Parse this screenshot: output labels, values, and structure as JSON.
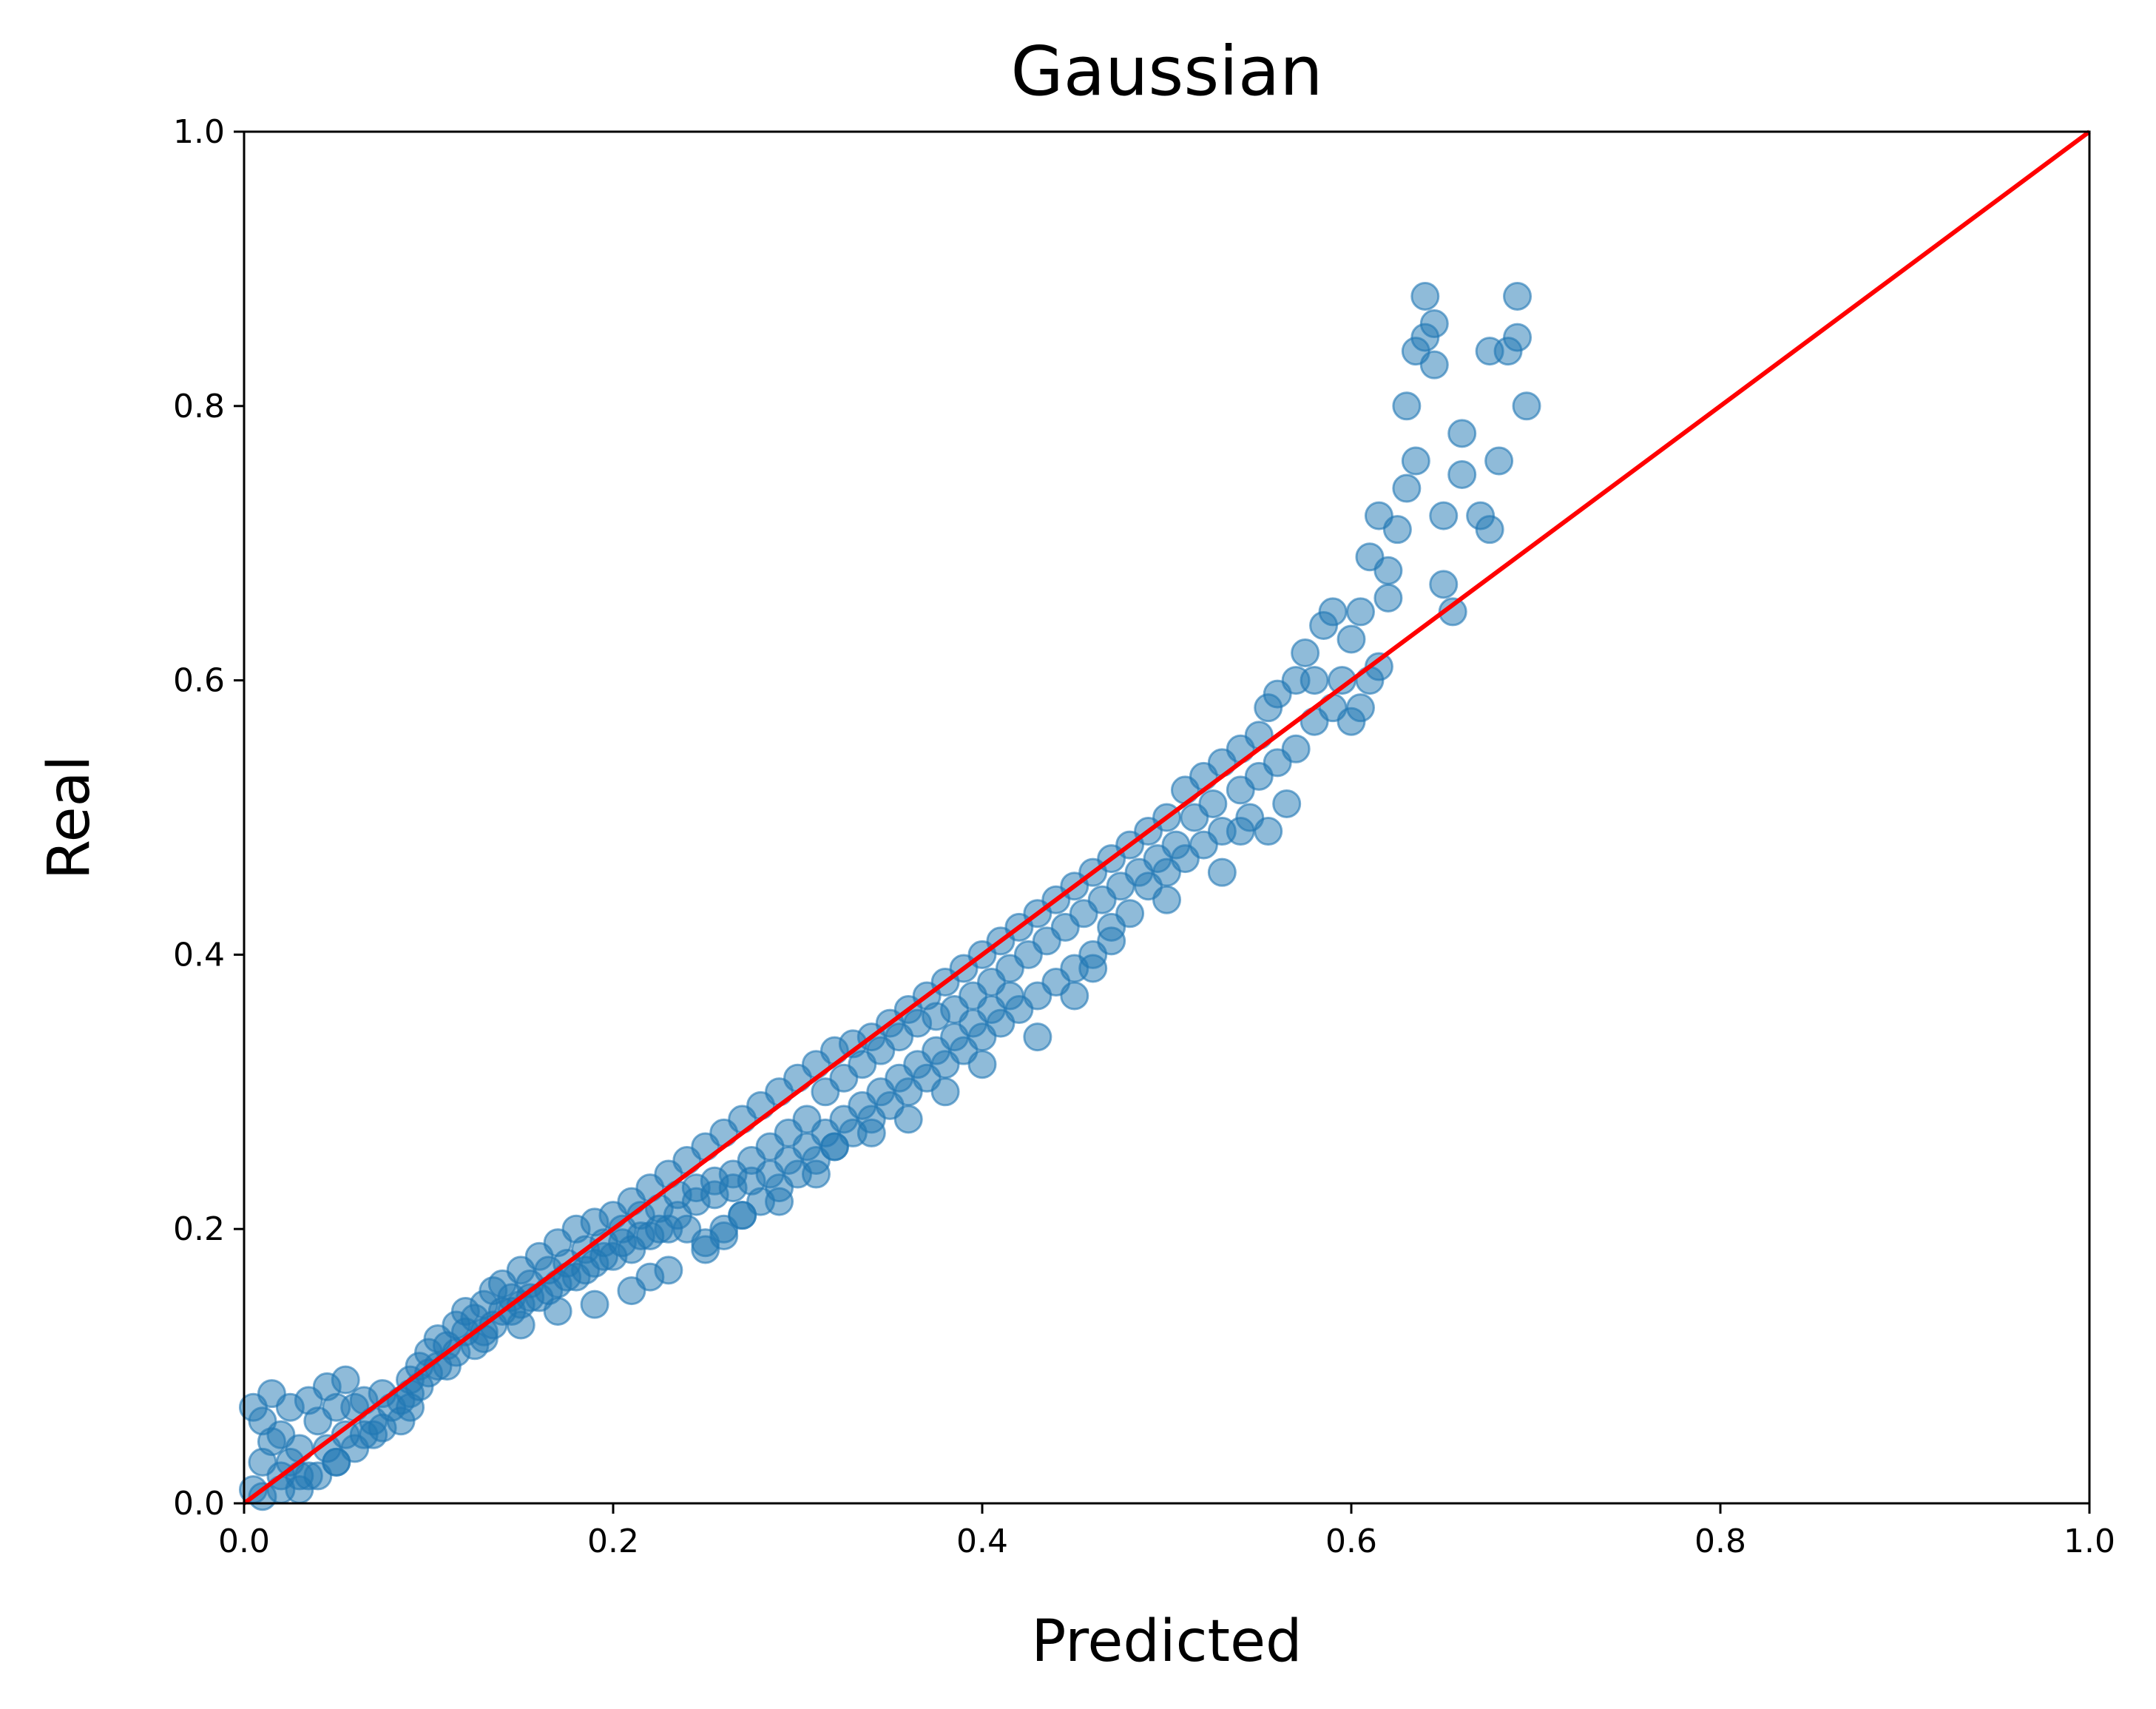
{
  "chart_data": {
    "type": "scatter",
    "title": "Gaussian",
    "xlabel": "Predicted",
    "ylabel": "Real",
    "xlim": [
      0.0,
      1.0
    ],
    "ylim": [
      0.0,
      1.0
    ],
    "x_ticks": [
      "0.0",
      "0.2",
      "0.4",
      "0.6",
      "0.8",
      "1.0"
    ],
    "y_ticks": [
      "0.0",
      "0.2",
      "0.4",
      "0.6",
      "0.8",
      "1.0"
    ],
    "grid": false,
    "legend": "none",
    "colors": {
      "points": "#1f77b4",
      "reference_line": "#ff0000"
    },
    "reference_line": {
      "from": [
        0.0,
        0.0
      ],
      "to": [
        1.0,
        1.0
      ]
    },
    "series": [
      {
        "points": [
          [
            0.005,
            0.01
          ],
          [
            0.01,
            0.03
          ],
          [
            0.01,
            0.06
          ],
          [
            0.015,
            0.08
          ],
          [
            0.02,
            0.02
          ],
          [
            0.02,
            0.05
          ],
          [
            0.025,
            0.07
          ],
          [
            0.03,
            0.01
          ],
          [
            0.03,
            0.04
          ],
          [
            0.035,
            0.075
          ],
          [
            0.04,
            0.02
          ],
          [
            0.04,
            0.06
          ],
          [
            0.045,
            0.085
          ],
          [
            0.05,
            0.03
          ],
          [
            0.05,
            0.07
          ],
          [
            0.055,
            0.09
          ],
          [
            0.06,
            0.04
          ],
          [
            0.06,
            0.07
          ],
          [
            0.065,
            0.05
          ],
          [
            0.07,
            0.06
          ],
          [
            0.075,
            0.055
          ],
          [
            0.08,
            0.07
          ],
          [
            0.085,
            0.075
          ],
          [
            0.09,
            0.09
          ],
          [
            0.09,
            0.08
          ],
          [
            0.095,
            0.1
          ],
          [
            0.1,
            0.11
          ],
          [
            0.1,
            0.095
          ],
          [
            0.105,
            0.12
          ],
          [
            0.11,
            0.115
          ],
          [
            0.115,
            0.13
          ],
          [
            0.12,
            0.125
          ],
          [
            0.12,
            0.14
          ],
          [
            0.125,
            0.135
          ],
          [
            0.13,
            0.145
          ],
          [
            0.13,
            0.125
          ],
          [
            0.135,
            0.155
          ],
          [
            0.14,
            0.14
          ],
          [
            0.14,
            0.16
          ],
          [
            0.145,
            0.15
          ],
          [
            0.15,
            0.17
          ],
          [
            0.15,
            0.145
          ],
          [
            0.155,
            0.16
          ],
          [
            0.16,
            0.18
          ],
          [
            0.16,
            0.15
          ],
          [
            0.165,
            0.17
          ],
          [
            0.17,
            0.19
          ],
          [
            0.17,
            0.16
          ],
          [
            0.175,
            0.175
          ],
          [
            0.18,
            0.2
          ],
          [
            0.18,
            0.165
          ],
          [
            0.185,
            0.185
          ],
          [
            0.19,
            0.205
          ],
          [
            0.19,
            0.175
          ],
          [
            0.195,
            0.19
          ],
          [
            0.2,
            0.21
          ],
          [
            0.2,
            0.18
          ],
          [
            0.205,
            0.2
          ],
          [
            0.21,
            0.22
          ],
          [
            0.21,
            0.185
          ],
          [
            0.215,
            0.21
          ],
          [
            0.22,
            0.23
          ],
          [
            0.22,
            0.195
          ],
          [
            0.225,
            0.215
          ],
          [
            0.23,
            0.24
          ],
          [
            0.23,
            0.2
          ],
          [
            0.235,
            0.225
          ],
          [
            0.24,
            0.25
          ],
          [
            0.24,
            0.2
          ],
          [
            0.245,
            0.23
          ],
          [
            0.25,
            0.26
          ],
          [
            0.25,
            0.19
          ],
          [
            0.255,
            0.235
          ],
          [
            0.26,
            0.27
          ],
          [
            0.26,
            0.2
          ],
          [
            0.265,
            0.24
          ],
          [
            0.27,
            0.28
          ],
          [
            0.27,
            0.21
          ],
          [
            0.275,
            0.25
          ],
          [
            0.28,
            0.29
          ],
          [
            0.28,
            0.22
          ],
          [
            0.285,
            0.26
          ],
          [
            0.29,
            0.3
          ],
          [
            0.29,
            0.23
          ],
          [
            0.295,
            0.27
          ],
          [
            0.3,
            0.31
          ],
          [
            0.3,
            0.24
          ],
          [
            0.305,
            0.28
          ],
          [
            0.31,
            0.32
          ],
          [
            0.31,
            0.25
          ],
          [
            0.315,
            0.3
          ],
          [
            0.32,
            0.33
          ],
          [
            0.32,
            0.26
          ],
          [
            0.325,
            0.31
          ],
          [
            0.33,
            0.335
          ],
          [
            0.33,
            0.27
          ],
          [
            0.335,
            0.32
          ],
          [
            0.34,
            0.34
          ],
          [
            0.34,
            0.28
          ],
          [
            0.345,
            0.33
          ],
          [
            0.35,
            0.35
          ],
          [
            0.35,
            0.29
          ],
          [
            0.355,
            0.34
          ],
          [
            0.36,
            0.36
          ],
          [
            0.36,
            0.3
          ],
          [
            0.365,
            0.35
          ],
          [
            0.37,
            0.37
          ],
          [
            0.37,
            0.31
          ],
          [
            0.375,
            0.355
          ],
          [
            0.38,
            0.38
          ],
          [
            0.38,
            0.32
          ],
          [
            0.385,
            0.36
          ],
          [
            0.39,
            0.39
          ],
          [
            0.39,
            0.33
          ],
          [
            0.395,
            0.37
          ],
          [
            0.4,
            0.4
          ],
          [
            0.4,
            0.34
          ],
          [
            0.405,
            0.38
          ],
          [
            0.41,
            0.41
          ],
          [
            0.41,
            0.35
          ],
          [
            0.415,
            0.39
          ],
          [
            0.42,
            0.42
          ],
          [
            0.42,
            0.36
          ],
          [
            0.425,
            0.4
          ],
          [
            0.43,
            0.43
          ],
          [
            0.43,
            0.37
          ],
          [
            0.435,
            0.41
          ],
          [
            0.44,
            0.44
          ],
          [
            0.44,
            0.38
          ],
          [
            0.445,
            0.42
          ],
          [
            0.45,
            0.45
          ],
          [
            0.45,
            0.39
          ],
          [
            0.455,
            0.43
          ],
          [
            0.46,
            0.46
          ],
          [
            0.46,
            0.4
          ],
          [
            0.465,
            0.44
          ],
          [
            0.47,
            0.47
          ],
          [
            0.47,
            0.41
          ],
          [
            0.475,
            0.45
          ],
          [
            0.48,
            0.48
          ],
          [
            0.48,
            0.43
          ],
          [
            0.485,
            0.46
          ],
          [
            0.49,
            0.49
          ],
          [
            0.49,
            0.45
          ],
          [
            0.495,
            0.47
          ],
          [
            0.5,
            0.5
          ],
          [
            0.5,
            0.46
          ],
          [
            0.505,
            0.48
          ],
          [
            0.51,
            0.52
          ],
          [
            0.51,
            0.47
          ],
          [
            0.515,
            0.5
          ],
          [
            0.52,
            0.53
          ],
          [
            0.52,
            0.48
          ],
          [
            0.525,
            0.51
          ],
          [
            0.53,
            0.54
          ],
          [
            0.53,
            0.49
          ],
          [
            0.54,
            0.52
          ],
          [
            0.54,
            0.55
          ],
          [
            0.545,
            0.5
          ],
          [
            0.55,
            0.56
          ],
          [
            0.55,
            0.53
          ],
          [
            0.555,
            0.58
          ],
          [
            0.56,
            0.54
          ],
          [
            0.56,
            0.59
          ],
          [
            0.565,
            0.51
          ],
          [
            0.57,
            0.6
          ],
          [
            0.57,
            0.55
          ],
          [
            0.575,
            0.62
          ],
          [
            0.58,
            0.57
          ],
          [
            0.58,
            0.6
          ],
          [
            0.585,
            0.64
          ],
          [
            0.59,
            0.58
          ],
          [
            0.59,
            0.65
          ],
          [
            0.595,
            0.6
          ],
          [
            0.6,
            0.63
          ],
          [
            0.6,
            0.57
          ],
          [
            0.605,
            0.65
          ],
          [
            0.61,
            0.6
          ],
          [
            0.61,
            0.69
          ],
          [
            0.615,
            0.72
          ],
          [
            0.62,
            0.68
          ],
          [
            0.62,
            0.66
          ],
          [
            0.625,
            0.71
          ],
          [
            0.63,
            0.8
          ],
          [
            0.63,
            0.74
          ],
          [
            0.635,
            0.76
          ],
          [
            0.635,
            0.84
          ],
          [
            0.64,
            0.88
          ],
          [
            0.64,
            0.85
          ],
          [
            0.645,
            0.83
          ],
          [
            0.645,
            0.86
          ],
          [
            0.65,
            0.67
          ],
          [
            0.65,
            0.72
          ],
          [
            0.655,
            0.65
          ],
          [
            0.66,
            0.75
          ],
          [
            0.66,
            0.78
          ],
          [
            0.67,
            0.72
          ],
          [
            0.675,
            0.84
          ],
          [
            0.68,
            0.76
          ],
          [
            0.685,
            0.84
          ],
          [
            0.69,
            0.88
          ],
          [
            0.69,
            0.85
          ],
          [
            0.695,
            0.8
          ],
          [
            0.675,
            0.71
          ],
          [
            0.615,
            0.61
          ],
          [
            0.605,
            0.58
          ],
          [
            0.555,
            0.49
          ],
          [
            0.54,
            0.49
          ],
          [
            0.53,
            0.46
          ],
          [
            0.5,
            0.44
          ],
          [
            0.47,
            0.42
          ],
          [
            0.46,
            0.39
          ],
          [
            0.45,
            0.37
          ],
          [
            0.43,
            0.34
          ],
          [
            0.4,
            0.32
          ],
          [
            0.38,
            0.3
          ],
          [
            0.36,
            0.28
          ],
          [
            0.34,
            0.27
          ],
          [
            0.32,
            0.26
          ],
          [
            0.31,
            0.24
          ],
          [
            0.29,
            0.22
          ],
          [
            0.27,
            0.21
          ],
          [
            0.26,
            0.195
          ],
          [
            0.25,
            0.185
          ],
          [
            0.23,
            0.17
          ],
          [
            0.22,
            0.165
          ],
          [
            0.21,
            0.155
          ],
          [
            0.19,
            0.145
          ],
          [
            0.17,
            0.14
          ],
          [
            0.15,
            0.13
          ],
          [
            0.13,
            0.12
          ],
          [
            0.11,
            0.1
          ],
          [
            0.09,
            0.07
          ],
          [
            0.07,
            0.05
          ],
          [
            0.05,
            0.03
          ],
          [
            0.03,
            0.02
          ],
          [
            0.02,
            0.01
          ],
          [
            0.01,
            0.005
          ],
          [
            0.005,
            0.07
          ],
          [
            0.015,
            0.045
          ],
          [
            0.025,
            0.03
          ],
          [
            0.035,
            0.02
          ],
          [
            0.045,
            0.04
          ],
          [
            0.055,
            0.05
          ],
          [
            0.065,
            0.075
          ],
          [
            0.075,
            0.08
          ],
          [
            0.085,
            0.06
          ],
          [
            0.095,
            0.085
          ],
          [
            0.105,
            0.1
          ],
          [
            0.115,
            0.11
          ],
          [
            0.125,
            0.115
          ],
          [
            0.135,
            0.13
          ],
          [
            0.145,
            0.14
          ],
          [
            0.155,
            0.15
          ],
          [
            0.165,
            0.155
          ],
          [
            0.175,
            0.165
          ],
          [
            0.185,
            0.17
          ],
          [
            0.195,
            0.18
          ],
          [
            0.205,
            0.19
          ],
          [
            0.215,
            0.195
          ],
          [
            0.225,
            0.2
          ],
          [
            0.235,
            0.21
          ],
          [
            0.245,
            0.22
          ],
          [
            0.255,
            0.225
          ],
          [
            0.265,
            0.23
          ],
          [
            0.275,
            0.235
          ],
          [
            0.285,
            0.24
          ],
          [
            0.295,
            0.25
          ],
          [
            0.305,
            0.26
          ],
          [
            0.315,
            0.27
          ],
          [
            0.325,
            0.28
          ],
          [
            0.335,
            0.29
          ],
          [
            0.345,
            0.3
          ],
          [
            0.355,
            0.31
          ],
          [
            0.365,
            0.32
          ],
          [
            0.375,
            0.33
          ],
          [
            0.385,
            0.34
          ],
          [
            0.395,
            0.35
          ],
          [
            0.405,
            0.36
          ],
          [
            0.415,
            0.37
          ]
        ]
      }
    ]
  }
}
